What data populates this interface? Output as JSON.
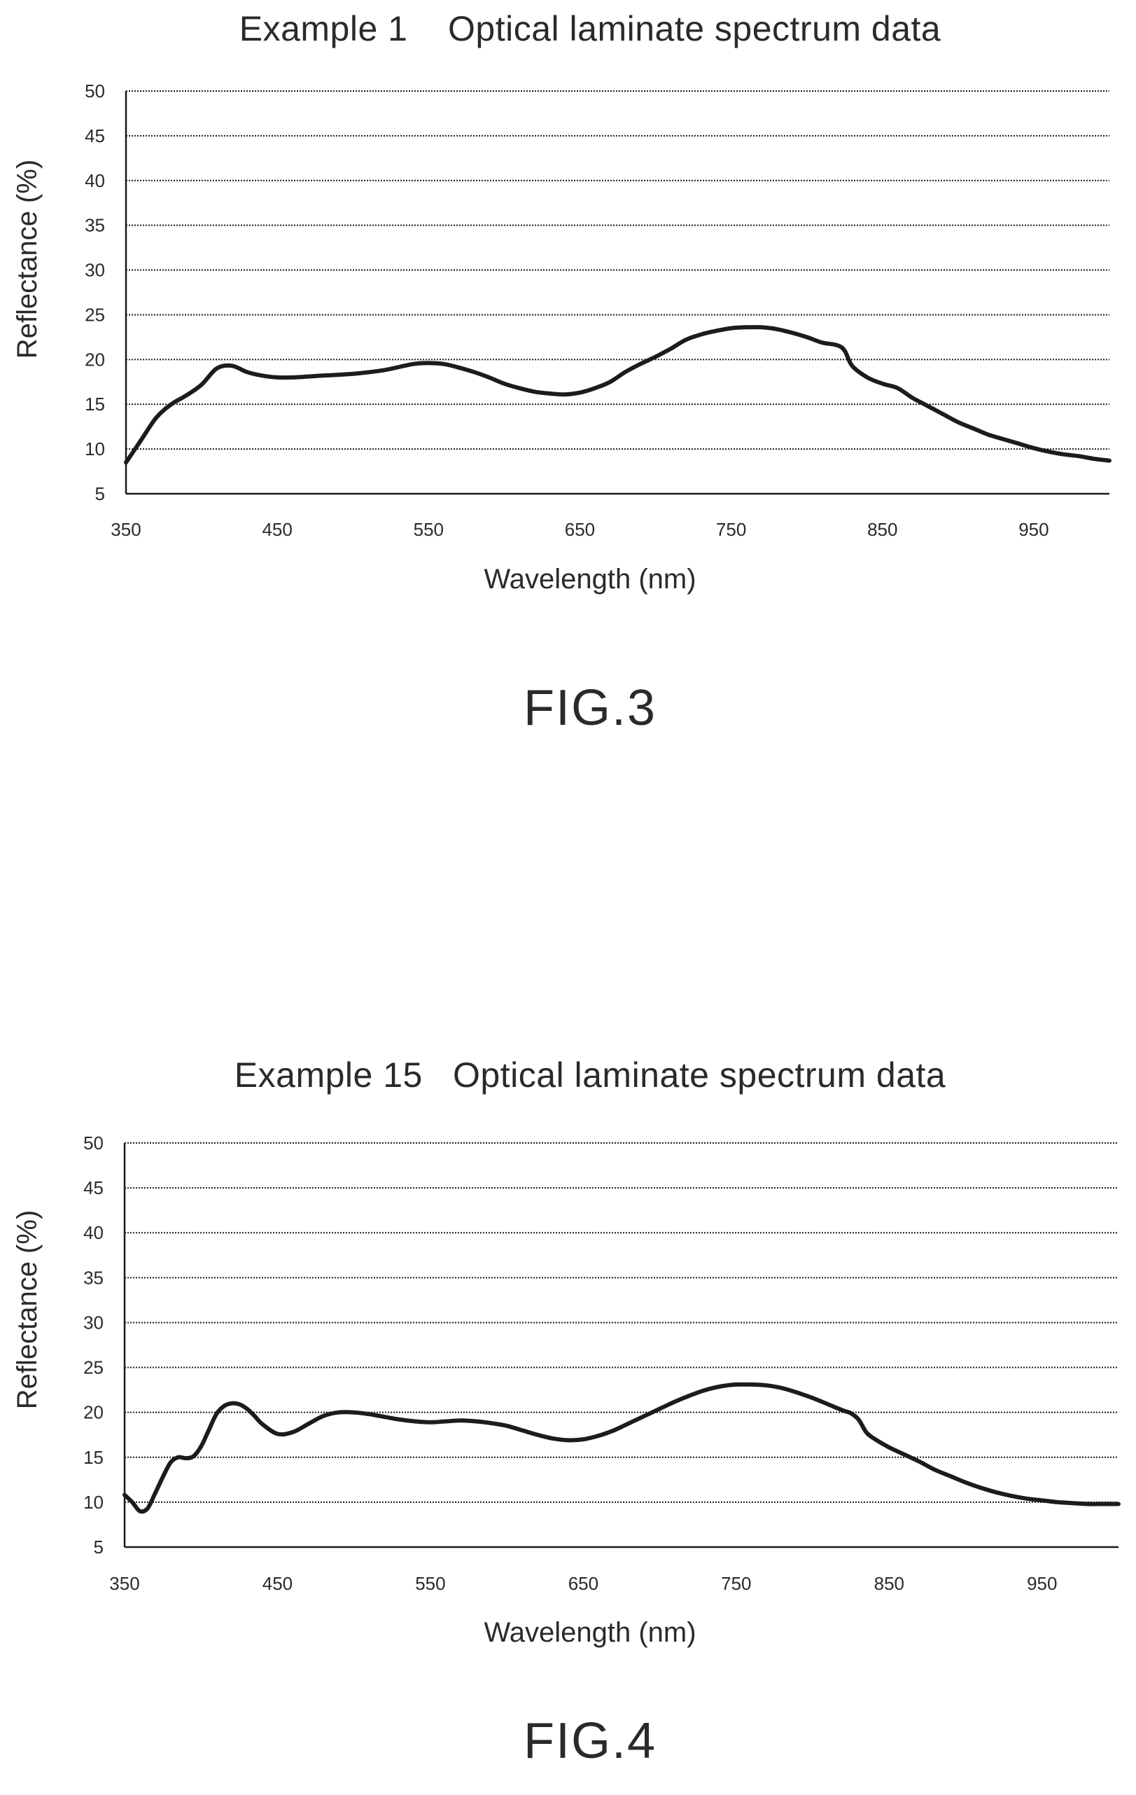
{
  "chart_data": [
    {
      "type": "line",
      "title": "Example 1    Optical laminate spectrum data",
      "xlabel": "Wavelength (nm)",
      "ylabel": "Reflectance (%)",
      "xlim": [
        350,
        1000
      ],
      "ylim": [
        5,
        50
      ],
      "xticks": [
        350,
        450,
        550,
        650,
        750,
        850,
        950
      ],
      "yticks": [
        5,
        10,
        15,
        20,
        25,
        30,
        35,
        40,
        45,
        50
      ],
      "grid": true,
      "caption": "FIG.3",
      "series": [
        {
          "x": [
            350,
            360,
            370,
            380,
            390,
            400,
            410,
            420,
            430,
            440,
            450,
            460,
            480,
            500,
            520,
            540,
            550,
            560,
            570,
            580,
            590,
            600,
            610,
            620,
            630,
            640,
            650,
            660,
            670,
            680,
            690,
            700,
            710,
            720,
            730,
            740,
            750,
            760,
            770,
            780,
            790,
            800,
            810,
            820,
            825,
            830,
            840,
            850,
            860,
            870,
            880,
            890,
            900,
            910,
            920,
            930,
            940,
            950,
            960,
            970,
            980,
            990,
            1000
          ],
          "y": [
            8.5,
            11,
            13.5,
            15,
            16,
            17.2,
            19,
            19.3,
            18.6,
            18.2,
            18,
            18,
            18.2,
            18.4,
            18.8,
            19.5,
            19.6,
            19.5,
            19.1,
            18.6,
            18,
            17.3,
            16.8,
            16.4,
            16.2,
            16.1,
            16.3,
            16.8,
            17.5,
            18.6,
            19.5,
            20.3,
            21.2,
            22.2,
            22.8,
            23.2,
            23.5,
            23.6,
            23.6,
            23.4,
            23,
            22.5,
            21.9,
            21.6,
            21,
            19.3,
            18,
            17.3,
            16.8,
            15.7,
            14.8,
            13.9,
            13,
            12.3,
            11.6,
            11.1,
            10.6,
            10.1,
            9.7,
            9.4,
            9.2,
            8.9,
            8.7
          ]
        }
      ]
    },
    {
      "type": "line",
      "title": "Example 15   Optical laminate spectrum data",
      "xlabel": "Wavelength (nm)",
      "ylabel": "Reflectance (%)",
      "xlim": [
        350,
        1000
      ],
      "ylim": [
        5,
        50
      ],
      "xticks": [
        350,
        450,
        550,
        650,
        750,
        850,
        950
      ],
      "yticks": [
        5,
        10,
        15,
        20,
        25,
        30,
        35,
        40,
        45,
        50
      ],
      "grid": true,
      "caption": "FIG.4",
      "series": [
        {
          "x": [
            350,
            355,
            360,
            365,
            370,
            375,
            380,
            385,
            390,
            395,
            400,
            405,
            410,
            415,
            420,
            425,
            430,
            435,
            440,
            450,
            460,
            470,
            480,
            490,
            500,
            510,
            520,
            530,
            540,
            550,
            560,
            570,
            580,
            590,
            600,
            610,
            620,
            630,
            640,
            650,
            660,
            670,
            680,
            690,
            700,
            710,
            720,
            730,
            740,
            750,
            760,
            770,
            780,
            790,
            800,
            810,
            820,
            825,
            830,
            835,
            840,
            850,
            860,
            870,
            880,
            890,
            900,
            910,
            920,
            930,
            940,
            950,
            960,
            970,
            980,
            990,
            1000
          ],
          "y": [
            10.8,
            10,
            9,
            9.3,
            11,
            12.8,
            14.4,
            15,
            14.9,
            15.1,
            16.2,
            18,
            19.8,
            20.7,
            21,
            20.9,
            20.4,
            19.6,
            18.7,
            17.6,
            17.8,
            18.7,
            19.6,
            20,
            20,
            19.8,
            19.5,
            19.2,
            19,
            18.9,
            19,
            19.1,
            19,
            18.8,
            18.5,
            18,
            17.5,
            17.1,
            16.9,
            17,
            17.4,
            18,
            18.8,
            19.6,
            20.4,
            21.2,
            21.9,
            22.5,
            22.9,
            23.1,
            23.1,
            23,
            22.7,
            22.2,
            21.6,
            20.9,
            20.2,
            19.9,
            19.2,
            17.8,
            17.1,
            16.1,
            15.3,
            14.5,
            13.6,
            12.9,
            12.2,
            11.6,
            11.1,
            10.7,
            10.4,
            10.2,
            10,
            9.9,
            9.8,
            9.8,
            9.8
          ]
        }
      ]
    }
  ]
}
